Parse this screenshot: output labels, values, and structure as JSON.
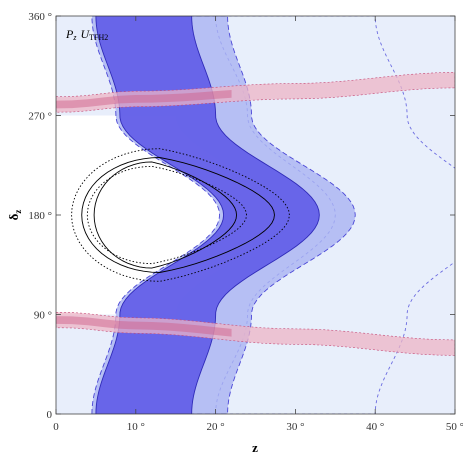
{
  "chart_data": {
    "type": "contour",
    "title": "",
    "panel_label": {
      "main": "P",
      "main_sub": "z",
      "model": "U",
      "model_sub": "TFH2"
    },
    "xlabel": "z",
    "ylabel": "δ",
    "ylabel_sub": "z",
    "xlim": [
      0,
      50
    ],
    "ylim": [
      0,
      360
    ],
    "x_ticks": [
      0,
      10,
      20,
      30,
      40,
      50
    ],
    "x_tick_labels": [
      "0",
      "10 °",
      "20 °",
      "30 °",
      "40 °",
      "50 °"
    ],
    "y_ticks": [
      0,
      90,
      180,
      270,
      360
    ],
    "y_tick_labels": [
      "0",
      "90 °",
      "180 °",
      "270 °",
      "360 °"
    ],
    "colors": {
      "light_region": "#e8eefb",
      "mid_blue": "#a9b3f2",
      "dark_blue": "#5a55e6",
      "pink_light": "#eeb4c6",
      "pink_dark": "#cf5a86",
      "contour_black": "#000000",
      "contour_blue": "#3d36c9"
    },
    "regions": [
      {
        "name": "outer-light-band",
        "kind": "band",
        "z_at_delta": [
          [
            0,
            30
          ],
          [
            90,
            34
          ],
          [
            180,
            45
          ],
          [
            270,
            34
          ],
          [
            360,
            30
          ]
        ],
        "width": 20
      },
      {
        "name": "mid-blue-band",
        "kind": "band",
        "z_at_delta": [
          [
            0,
            13
          ],
          [
            90,
            16
          ],
          [
            180,
            29
          ],
          [
            270,
            16
          ],
          [
            360,
            13
          ]
        ],
        "width": 17
      },
      {
        "name": "dark-blue-band",
        "kind": "band",
        "z_at_delta": [
          [
            0,
            11
          ],
          [
            90,
            14
          ],
          [
            180,
            27
          ],
          [
            270,
            14
          ],
          [
            360,
            11
          ]
        ],
        "width": 12
      },
      {
        "name": "bottom-pink-band",
        "kind": "band_horizontal",
        "delta_at_z": [
          [
            1,
            85
          ],
          [
            10,
            80
          ],
          [
            30,
            70
          ],
          [
            50,
            60
          ]
        ],
        "width": 14
      },
      {
        "name": "top-pink-band",
        "kind": "band_horizontal",
        "delta_at_z": [
          [
            1,
            280
          ],
          [
            10,
            285
          ],
          [
            30,
            292
          ],
          [
            50,
            302
          ]
        ],
        "width": 14
      }
    ],
    "ellipse_contours": [
      {
        "name": "inner-solid",
        "center": [
          12,
          180
        ],
        "rz": 8.5,
        "rdelta": 48,
        "style": "solid"
      },
      {
        "name": "outer-solid",
        "center": [
          13,
          180
        ],
        "rz": 11.5,
        "rdelta": 52,
        "style": "solid"
      },
      {
        "name": "inner-dotted",
        "center": [
          12,
          180
        ],
        "rz": 9.5,
        "rdelta": 44,
        "style": "dotted"
      },
      {
        "name": "outer-dotted",
        "center": [
          13,
          180
        ],
        "rz": 13,
        "rdelta": 60,
        "style": "dotted"
      }
    ]
  }
}
